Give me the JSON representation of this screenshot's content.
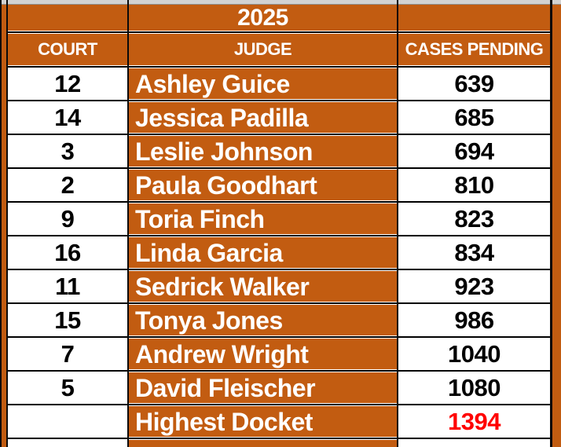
{
  "title_year": "2025",
  "columns": {
    "court": "COURT",
    "judge": "JUDGE",
    "cases": "CASES PENDING"
  },
  "rows": [
    {
      "court": "12",
      "judge": "Ashley Guice",
      "cases": "639",
      "highlight": false
    },
    {
      "court": "14",
      "judge": "Jessica Padilla",
      "cases": "685",
      "highlight": false
    },
    {
      "court": "3",
      "judge": "Leslie Johnson",
      "cases": "694",
      "highlight": false
    },
    {
      "court": "2",
      "judge": "Paula Goodhart",
      "cases": "810",
      "highlight": false
    },
    {
      "court": "9",
      "judge": "Toria Finch",
      "cases": "823",
      "highlight": false
    },
    {
      "court": "16",
      "judge": "Linda Garcia",
      "cases": "834",
      "highlight": false
    },
    {
      "court": "11",
      "judge": "Sedrick Walker",
      "cases": "923",
      "highlight": false
    },
    {
      "court": "15",
      "judge": "Tonya Jones",
      "cases": "986",
      "highlight": false
    },
    {
      "court": "7",
      "judge": "Andrew Wright",
      "cases": "1040",
      "highlight": false
    },
    {
      "court": "5",
      "judge": "David Fleischer",
      "cases": "1080",
      "highlight": false
    },
    {
      "court": "",
      "judge": "Highest Docket",
      "cases": "1394",
      "highlight": true
    }
  ],
  "colors": {
    "orange": "#C25C11",
    "highlight_red": "#FF0000",
    "gray_strip": "#D2D2D2",
    "border_black": "#0A0A0A",
    "cell_white": "#FFFFFF",
    "text_white": "#FFFFFF",
    "text_black": "#000000"
  }
}
